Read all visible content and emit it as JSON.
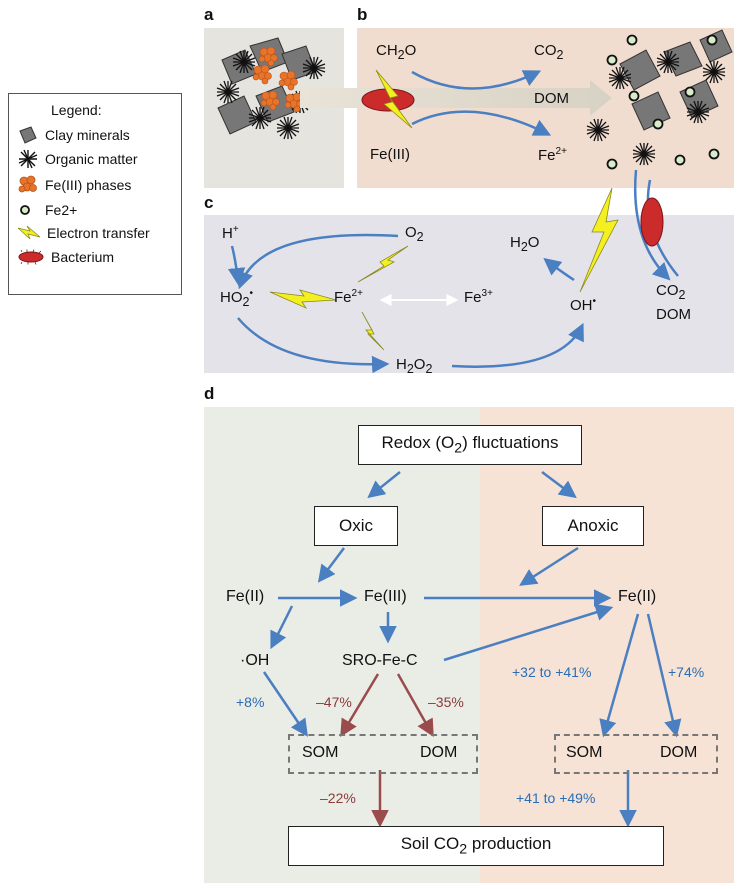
{
  "legend": {
    "title": "Legend:",
    "items": [
      {
        "label": "Clay minerals",
        "icon": "clay-mineral-icon"
      },
      {
        "label": "Organic matter",
        "icon": "organic-matter-icon"
      },
      {
        "label": "Fe(III) phases",
        "icon": "fe3-phase-icon"
      },
      {
        "label": "Fe2+",
        "icon": "fe2-ion-icon"
      },
      {
        "label": "Electron transfer",
        "icon": "lightning-icon"
      },
      {
        "label": "Bacterium",
        "icon": "bacterium-icon"
      }
    ]
  },
  "panels": {
    "a": "a",
    "b": "b",
    "c": "c",
    "d": "d"
  },
  "panel_b": {
    "ch2o": "CH2O",
    "co2": "CO2",
    "dom": "DOM",
    "fe3": "Fe(III)",
    "fe2": "Fe2+"
  },
  "panel_c": {
    "h_plus": "H+",
    "o2": "O2",
    "h2o": "H2O",
    "ho2": "HO2•",
    "fe2": "Fe2+",
    "fe3": "Fe3+",
    "oh": "OH•",
    "h2o2": "H2O2",
    "co2": "CO2",
    "dom": "DOM"
  },
  "panel_d": {
    "redox": "Redox (O2) fluctuations",
    "oxic": "Oxic",
    "anoxic": "Anoxic",
    "fe2_left": "Fe(II)",
    "fe3": "Fe(III)",
    "fe2_right": "Fe(II)",
    "oh": "·OH",
    "sro": "SRO-Fe-C",
    "som_left": "SOM",
    "dom_left": "DOM",
    "som_right": "SOM",
    "dom_right": "DOM",
    "soil_co2": "Soil CO2 production",
    "pct_oh": "+8%",
    "pct_sro_som": "–47%",
    "pct_sro_dom": "–35%",
    "pct_fe2_som": "+32 to +41%",
    "pct_fe2_dom": "+74%",
    "pct_left_co2": "–22%",
    "pct_right_co2": "+41 to +49%"
  },
  "colors": {
    "arrow_blue": "#4a7fc1",
    "arrow_red": "#9a4b4b",
    "panel_a_bg": "#e6e4de",
    "panel_b_bg": "#f1ddd0",
    "panel_c_bg": "#e5e3ea",
    "panel_d_left_bg": "#eaece6",
    "panel_d_right_bg": "#f6e3d6",
    "lightning_fill": "#f4ef20",
    "bacterium_fill": "#cc2b2b",
    "fe3_fill": "#e8742a",
    "fe2_fill": "#d9ecc9"
  }
}
